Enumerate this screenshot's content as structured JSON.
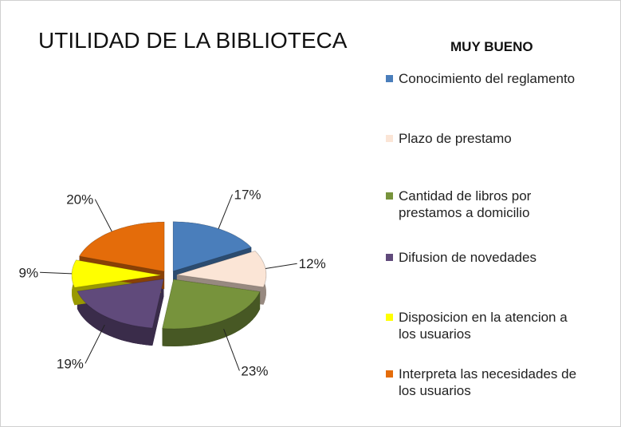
{
  "chart_data": {
    "type": "pie",
    "title": "UTILIDAD DE LA BIBLIOTECA",
    "subtitle": "MUY BUENO",
    "categories": [
      "Conocimiento del reglamento",
      "Plazo de prestamo",
      "Cantidad de libros por prestamos a domicilio",
      "Difusion de novedades",
      "Disposicion en la atencion a los usuarios",
      "Interpreta las necesidades de los usuarios"
    ],
    "values": [
      17,
      12,
      23,
      19,
      9,
      20
    ],
    "value_labels": [
      "17%",
      "12%",
      "23%",
      "19%",
      "9%",
      "20%"
    ],
    "colors": [
      "#4a7ebb",
      "#fbe5d6",
      "#77933c",
      "#604a7b",
      "#ffff00",
      "#e46c0a"
    ]
  }
}
